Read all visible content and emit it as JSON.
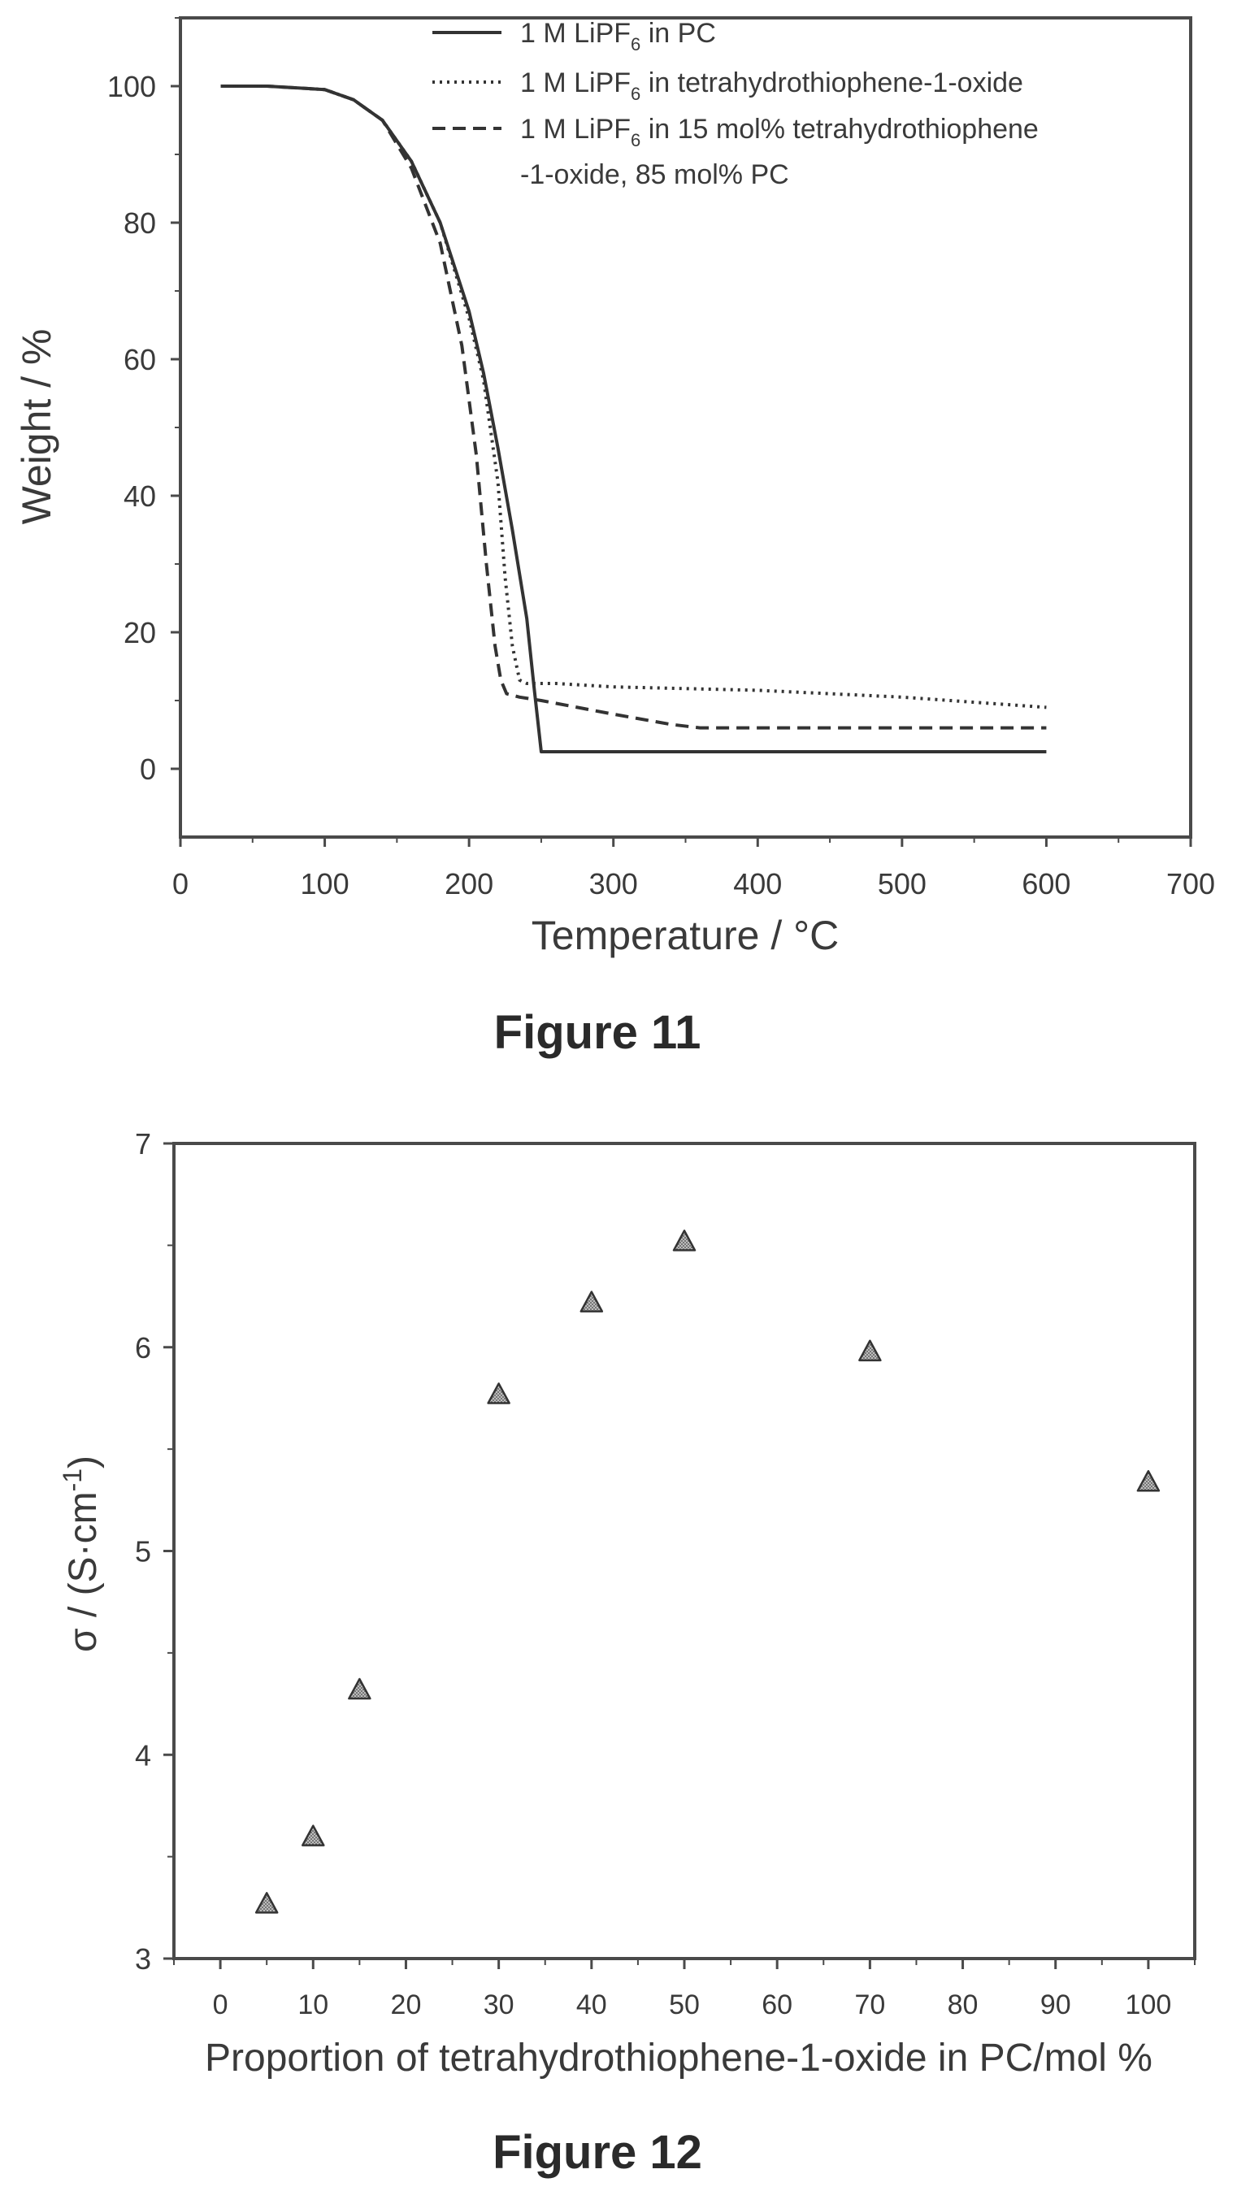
{
  "figures": [
    {
      "caption": "Figure 11",
      "chart_data": {
        "type": "line",
        "xlabel": "Temperature / °C",
        "ylabel": "Weight / %",
        "xlim": [
          0,
          700
        ],
        "ylim": [
          -10,
          110
        ],
        "xticks": [
          0,
          100,
          200,
          300,
          400,
          500,
          600,
          700
        ],
        "yticks": [
          0,
          20,
          40,
          60,
          80,
          100
        ],
        "grid": false,
        "legend_position": "top-right",
        "series": [
          {
            "name": "1 M LiPF6 in PC",
            "style": "solid",
            "x": [
              28,
              60,
              100,
              120,
              140,
              160,
              180,
              200,
              210,
              220,
              230,
              240,
              245,
              250,
              300,
              400,
              500,
              600
            ],
            "y": [
              100,
              100,
              99.5,
              98,
              95,
              89,
              80,
              67,
              58,
              47,
              35,
              22,
              12,
              2.5,
              2.5,
              2.5,
              2.5,
              2.5
            ]
          },
          {
            "name": "1 M LiPF6 in tetrahydrothiophene-1-oxide",
            "style": "dotted",
            "x": [
              28,
              60,
              100,
              120,
              140,
              160,
              180,
              200,
              210,
              220,
              225,
              230,
              235,
              240,
              260,
              300,
              400,
              500,
              600
            ],
            "y": [
              100,
              100,
              99.5,
              98,
              95,
              89,
              80,
              66,
              57,
              42,
              28,
              18,
              13,
              12.5,
              12.5,
              12,
              11.5,
              10.5,
              9
            ]
          },
          {
            "name": "1 M LiPF6 in 15 mol% tetrahydrothiophene-1-oxide, 85 mol% PC",
            "style": "dashed",
            "x": [
              28,
              60,
              100,
              120,
              140,
              160,
              180,
              195,
              205,
              212,
              218,
              222,
              226,
              235,
              250,
              300,
              340,
              360,
              400,
              500,
              600
            ],
            "y": [
              100,
              100,
              99.5,
              98,
              95,
              88,
              77,
              62,
              46,
              30,
              18,
              13,
              11,
              10.5,
              10,
              8,
              6.5,
              6,
              6,
              6,
              6
            ]
          }
        ]
      },
      "legend_labels": [
        {
          "pre": "1 M LiPF",
          "sub": "6",
          "post": " in PC"
        },
        {
          "pre": "1 M LiPF",
          "sub": "6",
          "post": " in tetrahydrothiophene-1-oxide"
        },
        {
          "pre": "1 M LiPF",
          "sub": "6",
          "post": " in 15 mol% tetrahydrothiophene"
        }
      ],
      "legend_cont": "-1-oxide, 85 mol% PC"
    },
    {
      "caption": "Figure 12",
      "chart_data": {
        "type": "scatter",
        "xlabel": "Proportion of tetrahydrothiophene-1-oxide in PC/mol %",
        "ylabel": "σ / (S·cm⁻¹)",
        "ylabel_parts": {
          "main": "σ / (S·cm",
          "sup": "-1",
          "close": ")"
        },
        "xlim": [
          -5,
          105
        ],
        "ylim": [
          3,
          7
        ],
        "xticks": [
          0,
          10,
          20,
          30,
          40,
          50,
          60,
          70,
          80,
          90,
          100
        ],
        "yticks": [
          3,
          4,
          5,
          6,
          7
        ],
        "grid": false,
        "marker": "triangle",
        "series": [
          {
            "x": [
              5,
              10,
              15,
              30,
              40,
              50,
              70,
              100
            ],
            "y": [
              3.27,
              3.6,
              4.32,
              5.77,
              6.22,
              6.52,
              5.98,
              5.34
            ]
          }
        ]
      }
    }
  ]
}
